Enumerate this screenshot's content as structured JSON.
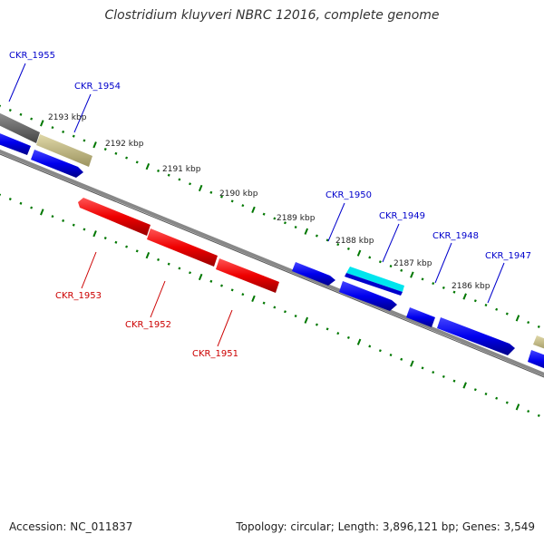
{
  "title": "Clostridium kluyveri NBRC 12016, complete genome",
  "accession": "Accession: NC_011837",
  "summary": "Topology: circular; Length: 3,896,121 bp; Genes: 3,549",
  "colors": {
    "forward_gene": "#0000ee",
    "reverse_gene": "#ee0000",
    "pseudo_gene": "#c8c088",
    "other_gene": "#707070",
    "highlight_gene": "#00e5ee",
    "axis_ticks": "#007700",
    "axis_line": "#888888",
    "forward_label": "#0000cc",
    "reverse_label": "#cc0000",
    "kbp_label": "#222222"
  },
  "kbp_labels": [
    "2193 kbp",
    "2192 kbp",
    "2191 kbp",
    "2190 kbp",
    "2189 kbp",
    "2188 kbp",
    "2187 kbp",
    "2186 kbp"
  ],
  "forward_labels": [
    "CKR_1955",
    "CKR_1954",
    "CKR_1950",
    "CKR_1949",
    "CKR_1948",
    "CKR_1947"
  ],
  "reverse_labels": [
    "CKR_1953",
    "CKR_1952",
    "CKR_1951"
  ]
}
